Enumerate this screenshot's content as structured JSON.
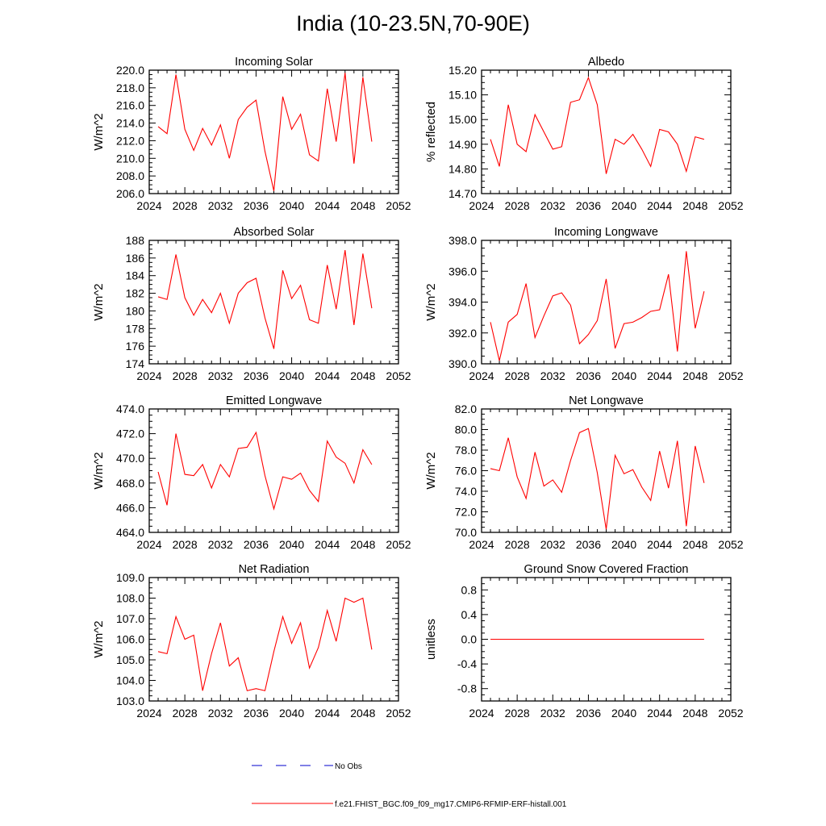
{
  "title": "India (10-23.5N,70-90E)",
  "colors": {
    "model_line": "#ff0000",
    "obs_line": "#0000cc",
    "axis": "#000000"
  },
  "legend": [
    {
      "label": "No Obs",
      "style": "dashed",
      "color": "#0000cc"
    },
    {
      "label": "f.e21.FHIST_BGC.f09_f09_mg17.CMIP6-RFMIP-ERF-histall.001",
      "style": "solid",
      "color": "#ff0000"
    }
  ],
  "chart_data": [
    {
      "type": "line",
      "title": "Incoming Solar",
      "ylabel": "W/m^2",
      "xlim": [
        2024,
        2052
      ],
      "ylim": [
        206.0,
        220.0
      ],
      "xticks": [
        2024,
        2028,
        2032,
        2036,
        2040,
        2044,
        2048,
        2052
      ],
      "yticks": [
        206.0,
        208.0,
        210.0,
        212.0,
        214.0,
        216.0,
        218.0,
        220.0
      ],
      "ydecimals": 1,
      "x": [
        2025,
        2026,
        2027,
        2028,
        2029,
        2030,
        2031,
        2032,
        2033,
        2034,
        2035,
        2036,
        2037,
        2038,
        2039,
        2040,
        2041,
        2042,
        2043,
        2044,
        2045,
        2046,
        2047,
        2048,
        2049
      ],
      "series": [
        {
          "values": [
            213.6,
            212.8,
            219.5,
            213.3,
            210.9,
            213.4,
            211.5,
            213.8,
            210.0,
            214.4,
            215.8,
            216.6,
            210.8,
            206.3,
            217.0,
            213.3,
            215.0,
            210.4,
            209.7,
            217.9,
            211.9,
            219.7,
            209.4,
            219.2,
            211.9
          ]
        }
      ]
    },
    {
      "type": "line",
      "title": "Albedo",
      "ylabel": "% reflected",
      "xlim": [
        2024,
        2052
      ],
      "ylim": [
        14.7,
        15.2
      ],
      "xticks": [
        2024,
        2028,
        2032,
        2036,
        2040,
        2044,
        2048,
        2052
      ],
      "yticks": [
        14.7,
        14.8,
        14.9,
        15.0,
        15.1,
        15.2
      ],
      "ydecimals": 2,
      "x": [
        2025,
        2026,
        2027,
        2028,
        2029,
        2030,
        2031,
        2032,
        2033,
        2034,
        2035,
        2036,
        2037,
        2038,
        2039,
        2040,
        2041,
        2042,
        2043,
        2044,
        2045,
        2046,
        2047,
        2048,
        2049
      ],
      "series": [
        {
          "values": [
            14.92,
            14.81,
            15.06,
            14.9,
            14.87,
            15.02,
            14.95,
            14.88,
            14.89,
            15.07,
            15.08,
            15.17,
            15.06,
            14.78,
            14.92,
            14.9,
            14.94,
            14.88,
            14.81,
            14.96,
            14.95,
            14.9,
            14.79,
            14.93,
            14.92
          ]
        }
      ]
    },
    {
      "type": "line",
      "title": "Absorbed Solar",
      "ylabel": "W/m^2",
      "xlim": [
        2024,
        2052
      ],
      "ylim": [
        174,
        188
      ],
      "xticks": [
        2024,
        2028,
        2032,
        2036,
        2040,
        2044,
        2048,
        2052
      ],
      "yticks": [
        174,
        176,
        178,
        180,
        182,
        184,
        186,
        188
      ],
      "ydecimals": 0,
      "x": [
        2025,
        2026,
        2027,
        2028,
        2029,
        2030,
        2031,
        2032,
        2033,
        2034,
        2035,
        2036,
        2037,
        2038,
        2039,
        2040,
        2041,
        2042,
        2043,
        2044,
        2045,
        2046,
        2047,
        2048,
        2049
      ],
      "series": [
        {
          "values": [
            181.6,
            181.3,
            186.4,
            181.5,
            179.5,
            181.3,
            179.8,
            182.0,
            178.6,
            182.0,
            183.2,
            183.7,
            179.2,
            175.7,
            184.6,
            181.4,
            182.9,
            179.0,
            178.6,
            185.2,
            180.2,
            186.9,
            178.4,
            186.5,
            180.3
          ]
        }
      ]
    },
    {
      "type": "line",
      "title": "Incoming Longwave",
      "ylabel": "W/m^2",
      "xlim": [
        2024,
        2052
      ],
      "ylim": [
        390.0,
        398.0
      ],
      "xticks": [
        2024,
        2028,
        2032,
        2036,
        2040,
        2044,
        2048,
        2052
      ],
      "yticks": [
        390.0,
        392.0,
        394.0,
        396.0,
        398.0
      ],
      "ydecimals": 1,
      "x": [
        2025,
        2026,
        2027,
        2028,
        2029,
        2030,
        2031,
        2032,
        2033,
        2034,
        2035,
        2036,
        2037,
        2038,
        2039,
        2040,
        2041,
        2042,
        2043,
        2044,
        2045,
        2046,
        2047,
        2048,
        2049
      ],
      "series": [
        {
          "values": [
            392.7,
            390.2,
            392.7,
            393.2,
            395.2,
            391.7,
            393.1,
            394.4,
            394.6,
            393.8,
            391.3,
            391.9,
            392.8,
            395.5,
            391.0,
            392.6,
            392.7,
            393.0,
            393.4,
            393.5,
            395.8,
            390.8,
            397.3,
            392.3,
            394.7
          ]
        }
      ]
    },
    {
      "type": "line",
      "title": "Emitted Longwave",
      "ylabel": "W/m^2",
      "xlim": [
        2024,
        2052
      ],
      "ylim": [
        464.0,
        474.0
      ],
      "xticks": [
        2024,
        2028,
        2032,
        2036,
        2040,
        2044,
        2048,
        2052
      ],
      "yticks": [
        464.0,
        466.0,
        468.0,
        470.0,
        472.0,
        474.0
      ],
      "ydecimals": 1,
      "x": [
        2025,
        2026,
        2027,
        2028,
        2029,
        2030,
        2031,
        2032,
        2033,
        2034,
        2035,
        2036,
        2037,
        2038,
        2039,
        2040,
        2041,
        2042,
        2043,
        2044,
        2045,
        2046,
        2047,
        2048,
        2049
      ],
      "series": [
        {
          "values": [
            468.9,
            466.2,
            472.0,
            468.7,
            468.6,
            469.5,
            467.6,
            469.5,
            468.5,
            470.8,
            470.9,
            472.1,
            468.6,
            465.9,
            468.5,
            468.3,
            468.8,
            467.4,
            466.5,
            471.4,
            470.1,
            469.6,
            468.0,
            470.7,
            469.5
          ]
        }
      ]
    },
    {
      "type": "line",
      "title": "Net Longwave",
      "ylabel": "W/m^2",
      "xlim": [
        2024,
        2052
      ],
      "ylim": [
        70.0,
        82.0
      ],
      "xticks": [
        2024,
        2028,
        2032,
        2036,
        2040,
        2044,
        2048,
        2052
      ],
      "yticks": [
        70.0,
        72.0,
        74.0,
        76.0,
        78.0,
        80.0,
        82.0
      ],
      "ydecimals": 1,
      "x": [
        2025,
        2026,
        2027,
        2028,
        2029,
        2030,
        2031,
        2032,
        2033,
        2034,
        2035,
        2036,
        2037,
        2038,
        2039,
        2040,
        2041,
        2042,
        2043,
        2044,
        2045,
        2046,
        2047,
        2048,
        2049
      ],
      "series": [
        {
          "values": [
            76.2,
            76.0,
            79.2,
            75.4,
            73.3,
            77.8,
            74.5,
            75.1,
            73.9,
            77.0,
            79.7,
            80.1,
            75.8,
            70.3,
            77.5,
            75.7,
            76.1,
            74.4,
            73.1,
            77.9,
            74.3,
            78.9,
            70.6,
            78.4,
            74.8
          ]
        }
      ]
    },
    {
      "type": "line",
      "title": "Net Radiation",
      "ylabel": "W/m^2",
      "xlim": [
        2024,
        2052
      ],
      "ylim": [
        103.0,
        109.0
      ],
      "xticks": [
        2024,
        2028,
        2032,
        2036,
        2040,
        2044,
        2048,
        2052
      ],
      "yticks": [
        103.0,
        104.0,
        105.0,
        106.0,
        107.0,
        108.0,
        109.0
      ],
      "ydecimals": 1,
      "x": [
        2025,
        2026,
        2027,
        2028,
        2029,
        2030,
        2031,
        2032,
        2033,
        2034,
        2035,
        2036,
        2037,
        2038,
        2039,
        2040,
        2041,
        2042,
        2043,
        2044,
        2045,
        2046,
        2047,
        2048,
        2049
      ],
      "series": [
        {
          "values": [
            105.4,
            105.3,
            107.1,
            106.0,
            106.2,
            103.5,
            105.3,
            106.8,
            104.7,
            105.1,
            103.5,
            103.6,
            103.5,
            105.4,
            107.1,
            105.8,
            106.8,
            104.6,
            105.6,
            107.4,
            105.9,
            108.0,
            107.8,
            108.0,
            105.5
          ]
        }
      ]
    },
    {
      "type": "line",
      "title": "Ground Snow Covered Fraction",
      "ylabel": "unitless",
      "xlim": [
        2024,
        2052
      ],
      "ylim": [
        -1.0,
        1.0
      ],
      "xticks": [
        2024,
        2028,
        2032,
        2036,
        2040,
        2044,
        2048,
        2052
      ],
      "yticks": [
        -0.8,
        -0.4,
        0.0,
        0.4,
        0.8
      ],
      "ydecimals": 1,
      "x": [
        2025,
        2026,
        2027,
        2028,
        2029,
        2030,
        2031,
        2032,
        2033,
        2034,
        2035,
        2036,
        2037,
        2038,
        2039,
        2040,
        2041,
        2042,
        2043,
        2044,
        2045,
        2046,
        2047,
        2048,
        2049
      ],
      "series": [
        {
          "values": [
            0,
            0,
            0,
            0,
            0,
            0,
            0,
            0,
            0,
            0,
            0,
            0,
            0,
            0,
            0,
            0,
            0,
            0,
            0,
            0,
            0,
            0,
            0,
            0,
            0
          ]
        }
      ]
    }
  ]
}
